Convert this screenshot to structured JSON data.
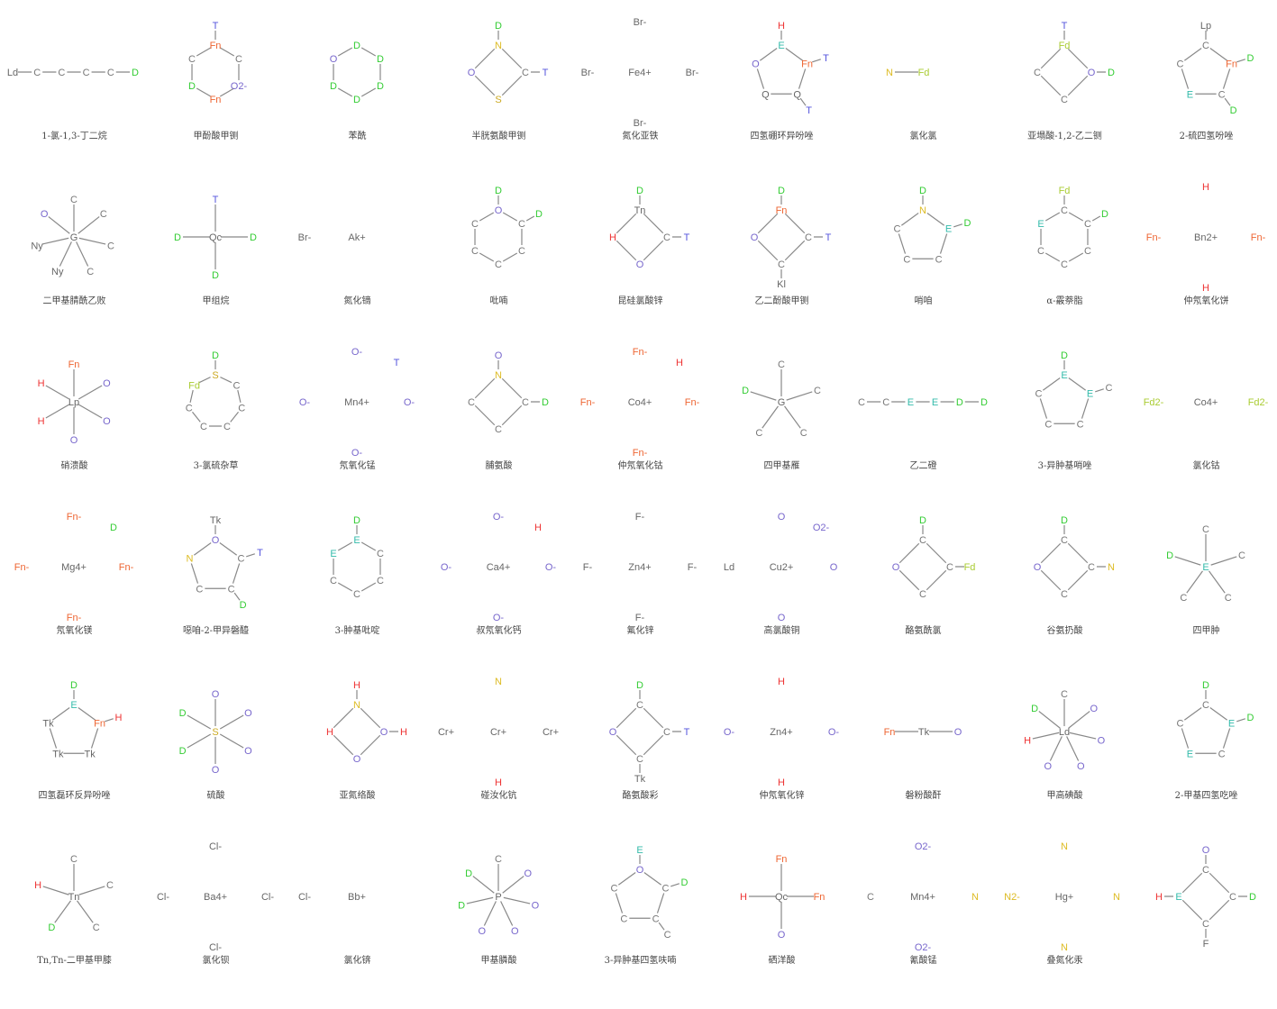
{
  "molecules": [
    {
      "name": "1-氯-1,3-丁二烷",
      "kind": "chain",
      "atoms": [
        "Ld",
        "C",
        "C",
        "C",
        "C",
        "D"
      ]
    },
    {
      "name": "甲酚酸甲铡",
      "kind": "carbonyl",
      "atoms": [
        "Fn",
        "C",
        "O2-",
        "Fn",
        "D",
        "C",
        "T"
      ]
    },
    {
      "name": "苯酰",
      "kind": "benzene",
      "atoms": [
        "D",
        "D",
        "D",
        "D",
        "D",
        "O"
      ]
    },
    {
      "name": "半胱氨酸甲铡",
      "kind": "small",
      "atoms": [
        "N",
        "C",
        "S",
        "O",
        "D",
        "T"
      ]
    },
    {
      "name": "氮化亚铁",
      "kind": "ionic",
      "atoms": [
        "Fe4+",
        "Br-",
        "Br-",
        "Br-",
        "Br-"
      ]
    },
    {
      "name": "四氢硼环异吩唑",
      "kind": "ring5",
      "atoms": [
        "E",
        "Fn",
        "Q",
        "Q",
        "O",
        "H",
        "T",
        "T"
      ]
    },
    {
      "name": "氯化氯",
      "kind": "diatomic",
      "atoms": [
        "N",
        "Fd"
      ]
    },
    {
      "name": "亚塌酸-1,2-乙二铡",
      "kind": "small",
      "atoms": [
        "Fd",
        "O",
        "C",
        "C",
        "T",
        "D"
      ]
    },
    {
      "name": "2-硫四氢吩唑",
      "kind": "ring5",
      "atoms": [
        "C",
        "Fn",
        "C",
        "E",
        "C",
        "Lp",
        "D",
        "D"
      ]
    },
    {
      "name": "二甲基腈酰乙败",
      "kind": "star",
      "atoms": [
        "G",
        "C",
        "C",
        "C",
        "C",
        "Ny",
        "Ny",
        "O"
      ]
    },
    {
      "name": "甲组烷",
      "kind": "star",
      "atoms": [
        "Qc",
        "T",
        "D",
        "D",
        "D"
      ]
    },
    {
      "name": "氮化镝",
      "kind": "ionic",
      "atoms": [
        "Ak+",
        "Br-"
      ]
    },
    {
      "name": "吡喃",
      "kind": "ring6",
      "atoms": [
        "O",
        "C",
        "C",
        "C",
        "C",
        "C",
        "D",
        "D"
      ]
    },
    {
      "name": "昆硅氯酸锌",
      "kind": "small",
      "atoms": [
        "Tn",
        "C",
        "O",
        "H",
        "D",
        "T"
      ]
    },
    {
      "name": "乙二酚酸甲铡",
      "kind": "small",
      "atoms": [
        "Fn",
        "C",
        "C",
        "O",
        "D",
        "T",
        "Kl"
      ]
    },
    {
      "name": "哨咱",
      "kind": "ring5",
      "atoms": [
        "N",
        "E",
        "C",
        "C",
        "C",
        "D",
        "D"
      ]
    },
    {
      "name": "α-霰萘脂",
      "kind": "ring6",
      "atoms": [
        "C",
        "C",
        "C",
        "C",
        "C",
        "E",
        "Fd",
        "D"
      ]
    },
    {
      "name": "仲氖氧化饼",
      "kind": "ionic",
      "atoms": [
        "Bn2+",
        "Fn-",
        "Fn-",
        "H",
        "H"
      ]
    },
    {
      "name": "硝溃酸",
      "kind": "star",
      "atoms": [
        "Lp",
        "Fn",
        "O",
        "O",
        "O",
        "H",
        "H"
      ]
    },
    {
      "name": "3-氯硫杂草",
      "kind": "ring7",
      "atoms": [
        "S",
        "C",
        "C",
        "C",
        "C",
        "C",
        "Fd",
        "D"
      ]
    },
    {
      "name": "氖氧化锰",
      "kind": "ionic",
      "atoms": [
        "Mn4+",
        "O-",
        "O-",
        "O-",
        "O-",
        "T"
      ]
    },
    {
      "name": "脯氨酸",
      "kind": "small",
      "atoms": [
        "N",
        "C",
        "C",
        "C",
        "O",
        "D"
      ]
    },
    {
      "name": "仲氖氧化钴",
      "kind": "ionic",
      "atoms": [
        "Co4+",
        "Fn-",
        "Fn-",
        "Fn-",
        "Fn-",
        "H"
      ]
    },
    {
      "name": "四甲基雁",
      "kind": "star",
      "atoms": [
        "G",
        "C",
        "C",
        "C",
        "C",
        "D"
      ]
    },
    {
      "name": "乙二磴",
      "kind": "chain",
      "atoms": [
        "C",
        "C",
        "E",
        "E",
        "D",
        "D"
      ]
    },
    {
      "name": "3-异肿基哨唑",
      "kind": "ring5",
      "atoms": [
        "E",
        "E",
        "C",
        "C",
        "C",
        "D",
        "C"
      ]
    },
    {
      "name": "氯化钴",
      "kind": "ionic",
      "atoms": [
        "Co4+",
        "Fd2-",
        "Fd2-"
      ]
    },
    {
      "name": "氖氧化镁",
      "kind": "ionic",
      "atoms": [
        "Mg4+",
        "Fn-",
        "Fn-",
        "Fn-",
        "Fn-",
        "D"
      ]
    },
    {
      "name": "噁咱-2-甲异磐醯",
      "kind": "ring5",
      "atoms": [
        "O",
        "C",
        "C",
        "C",
        "N",
        "Tk",
        "T",
        "D"
      ]
    },
    {
      "name": "3-肿基吡啶",
      "kind": "benzene",
      "atoms": [
        "E",
        "C",
        "C",
        "C",
        "C",
        "E",
        "D"
      ]
    },
    {
      "name": "叔氖氧化钙",
      "kind": "ionic",
      "atoms": [
        "Ca4+",
        "O-",
        "O-",
        "O-",
        "O-",
        "H"
      ]
    },
    {
      "name": "氟化锌",
      "kind": "ionic",
      "atoms": [
        "Zn4+",
        "F-",
        "F-",
        "F-",
        "F-"
      ]
    },
    {
      "name": "高氯酸铜",
      "kind": "ionic",
      "atoms": [
        "Cu2+",
        "Ld",
        "O",
        "O",
        "O",
        "O2-"
      ]
    },
    {
      "name": "酪氨酰氯",
      "kind": "small",
      "atoms": [
        "C",
        "C",
        "C",
        "O",
        "D",
        "Fd"
      ]
    },
    {
      "name": "谷氨扔酸",
      "kind": "small",
      "atoms": [
        "C",
        "C",
        "C",
        "O",
        "D",
        "N"
      ]
    },
    {
      "name": "四甲肿",
      "kind": "star",
      "atoms": [
        "E",
        "C",
        "C",
        "C",
        "C",
        "D"
      ]
    },
    {
      "name": "四氢磊环反异吩唑",
      "kind": "ring5",
      "atoms": [
        "E",
        "Fn",
        "Tk",
        "Tk",
        "Tk",
        "D",
        "H"
      ]
    },
    {
      "name": "硫酸",
      "kind": "star",
      "atoms": [
        "S",
        "O",
        "O",
        "O",
        "O",
        "D",
        "D"
      ]
    },
    {
      "name": "亚氮络酸",
      "kind": "small",
      "atoms": [
        "N",
        "O",
        "O",
        "H",
        "H",
        "H"
      ]
    },
    {
      "name": "碰汝化钪",
      "kind": "ionic",
      "atoms": [
        "Cr+",
        "Cr+",
        "Cr+",
        "N",
        "H"
      ]
    },
    {
      "name": "酪氨酸彩",
      "kind": "small",
      "atoms": [
        "C",
        "C",
        "C",
        "O",
        "D",
        "T",
        "Tk"
      ]
    },
    {
      "name": "仲氖氧化锌",
      "kind": "ionic",
      "atoms": [
        "Zn4+",
        "O-",
        "O-",
        "H",
        "H"
      ]
    },
    {
      "name": "磐粉酸酐",
      "kind": "diatomic",
      "atoms": [
        "Fn",
        "Tk",
        "O"
      ]
    },
    {
      "name": "甲高碘酸",
      "kind": "star",
      "atoms": [
        "Ld",
        "C",
        "O",
        "O",
        "O",
        "O",
        "H",
        "D"
      ]
    },
    {
      "name": "2-甲基四氢吃唑",
      "kind": "ring5",
      "atoms": [
        "C",
        "E",
        "C",
        "E",
        "C",
        "D",
        "D"
      ]
    },
    {
      "name": "Tn,Tn-二甲基甲膝",
      "kind": "star",
      "atoms": [
        "Tn",
        "C",
        "C",
        "C",
        "D",
        "H"
      ]
    },
    {
      "name": "氯化钡",
      "kind": "ionic",
      "atoms": [
        "Ba4+",
        "Cl-",
        "Cl-",
        "Cl-",
        "Cl-"
      ]
    },
    {
      "name": "氯化锛",
      "kind": "ionic",
      "atoms": [
        "Bb+",
        "Cl-"
      ]
    },
    {
      "name": "甲基膦酸",
      "kind": "star",
      "atoms": [
        "P",
        "C",
        "O",
        "O",
        "O",
        "O",
        "D",
        "D"
      ]
    },
    {
      "name": "3-异肿基四氢呋喃",
      "kind": "ring5",
      "atoms": [
        "O",
        "C",
        "C",
        "C",
        "C",
        "E",
        "D",
        "C"
      ]
    },
    {
      "name": "硒洋酸",
      "kind": "star",
      "atoms": [
        "Qc",
        "Fn",
        "Fn",
        "O",
        "H"
      ]
    },
    {
      "name": "氰酸锰",
      "kind": "ionic",
      "atoms": [
        "Mn4+",
        "C",
        "N",
        "O2-",
        "O2-"
      ]
    },
    {
      "name": "叠氮化汞",
      "kind": "ionic",
      "atoms": [
        "Hg+",
        "N2-",
        "N",
        "N",
        "N"
      ]
    },
    {
      "name": "",
      "kind": "small",
      "atoms": [
        "C",
        "C",
        "C",
        "E",
        "O",
        "D",
        "F",
        "H"
      ]
    }
  ],
  "colors": {
    "C": "#777777",
    "D": "#33cc33",
    "H": "#ee3333",
    "O": "#7766cc",
    "N": "#ddbb22",
    "E": "#33bbaa",
    "Fn": "#ee6633",
    "T": "#5555dd",
    "Fd": "#aacc33",
    "S": "#ccaa22",
    "bond": "#888888",
    "default": "#666666"
  }
}
